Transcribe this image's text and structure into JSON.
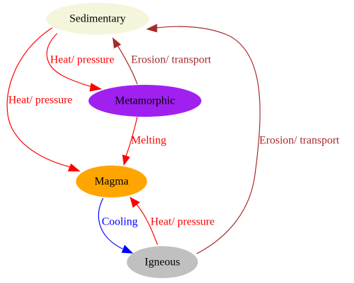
{
  "nodes": {
    "sedimentary": {
      "label": "Sedimentary",
      "color": "#f5f5dc"
    },
    "metamorphic": {
      "label": "Metamorphic",
      "color": "#a020f0"
    },
    "magma": {
      "label": "Magma",
      "color": "#ffa500"
    },
    "igneous": {
      "label": "Igneous",
      "color": "#c0c0c0"
    }
  },
  "edges": {
    "sed_to_meta": {
      "label": "Heat/ pressure",
      "color": "#ff0000",
      "from": "Sedimentary",
      "to": "Metamorphic"
    },
    "sed_to_magma": {
      "label": "Heat/ pressure",
      "color": "#ff0000",
      "from": "Sedimentary",
      "to": "Magma"
    },
    "meta_to_sed": {
      "label": "Erosion/ transport",
      "color": "#a52a2a",
      "from": "Metamorphic",
      "to": "Sedimentary"
    },
    "meta_to_magma": {
      "label": "Melting",
      "color": "#ff0000",
      "from": "Metamorphic",
      "to": "Magma"
    },
    "magma_to_igneous": {
      "label": "Cooling",
      "color": "#0000ff",
      "from": "Magma",
      "to": "Igneous"
    },
    "igneous_to_magma": {
      "label": "Heat/ pressure",
      "color": "#ff0000",
      "from": "Igneous",
      "to": "Magma"
    },
    "igneous_to_sed": {
      "label": "Erosion/ transport",
      "color": "#a52a2a",
      "from": "Igneous",
      "to": "Sedimentary"
    }
  }
}
